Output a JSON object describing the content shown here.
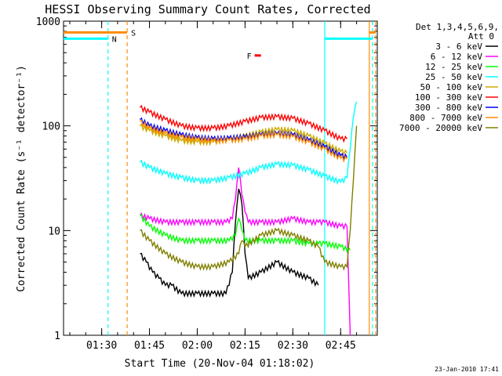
{
  "chart_data": {
    "type": "line",
    "title": "HESSI Observing Summary Count Rates, Corrected",
    "xlabel": "Start Time (20-Nov-04 01:18:02)",
    "ylabel": "Corrected Count Rate (s⁻¹ detector⁻¹)",
    "y_scale": "log",
    "ylim": [
      1,
      1000
    ],
    "xlim": [
      "01:18:02",
      "02:56:30"
    ],
    "y_ticks": [
      "1",
      "10",
      "100",
      "1000"
    ],
    "x_ticks": [
      "01:30",
      "01:45",
      "02:00",
      "02:15",
      "02:30",
      "02:45"
    ],
    "legend_header": "Det 1,3,4,5,6,9,",
    "legend_subheader": "Att 0",
    "legend_position": "right",
    "series": [
      {
        "name": "3 - 6 keV",
        "color": "#000000",
        "x": [
          "01:42",
          "01:44",
          "01:46",
          "01:48",
          "01:50",
          "01:52",
          "01:55",
          "02:00",
          "02:05",
          "02:09",
          "02:11",
          "02:12",
          "02:13",
          "02:14",
          "02:15",
          "02:16",
          "02:20",
          "02:25",
          "02:30",
          "02:35",
          "02:38"
        ],
        "y": [
          6,
          5,
          4,
          3.5,
          3,
          3,
          2.5,
          2.5,
          2.5,
          2.5,
          4,
          12,
          25,
          18,
          6,
          3.5,
          4,
          5,
          4,
          3.5,
          3
        ]
      },
      {
        "name": "6 - 12 keV",
        "color": "#ff00ff",
        "x": [
          "01:42",
          "01:45",
          "01:50",
          "01:55",
          "02:00",
          "02:05",
          "02:09",
          "02:11",
          "02:12",
          "02:13",
          "02:14",
          "02:15",
          "02:16",
          "02:20",
          "02:25",
          "02:30",
          "02:35",
          "02:38",
          "02:40",
          "02:45",
          "02:47",
          "02:48"
        ],
        "y": [
          14,
          13,
          12,
          12,
          12,
          12,
          12,
          13,
          20,
          40,
          22,
          15,
          12,
          12,
          12,
          13,
          12,
          12,
          12,
          11,
          11,
          1
        ]
      },
      {
        "name": "12 - 25 keV",
        "color": "#00ff00",
        "x": [
          "01:42",
          "01:45",
          "01:50",
          "01:55",
          "02:00",
          "02:05",
          "02:10",
          "02:12",
          "02:13",
          "02:14",
          "02:15",
          "02:20",
          "02:25",
          "02:30",
          "02:35",
          "02:38",
          "02:40",
          "02:45",
          "02:48"
        ],
        "y": [
          14,
          11,
          9,
          8,
          8,
          8,
          8,
          9,
          13,
          10,
          8,
          8,
          8,
          8,
          7.5,
          7.5,
          7.5,
          7,
          6.5
        ]
      },
      {
        "name": "25 - 50 keV",
        "color": "#00ffff",
        "x": [
          "01:42",
          "01:45",
          "01:50",
          "01:55",
          "02:00",
          "02:05",
          "02:10",
          "02:15",
          "02:20",
          "02:25",
          "02:30",
          "02:35",
          "02:40",
          "02:45",
          "02:47",
          "02:48",
          "02:49",
          "02:50"
        ],
        "y": [
          45,
          40,
          35,
          32,
          30,
          30,
          32,
          35,
          40,
          43,
          42,
          38,
          33,
          29,
          32,
          60,
          120,
          170
        ]
      },
      {
        "name": "50 - 100 keV",
        "color": "#ccaa00",
        "x": [
          "01:42",
          "01:45",
          "01:50",
          "01:55",
          "02:00",
          "02:05",
          "02:10",
          "02:15",
          "02:20",
          "02:25",
          "02:30",
          "02:35",
          "02:40",
          "02:45",
          "02:47"
        ],
        "y": [
          100,
          90,
          80,
          72,
          70,
          70,
          75,
          80,
          87,
          92,
          90,
          80,
          68,
          57,
          55
        ]
      },
      {
        "name": "100 - 300 keV",
        "color": "#ff0000",
        "x": [
          "01:42",
          "01:45",
          "01:50",
          "01:55",
          "02:00",
          "02:05",
          "02:10",
          "02:15",
          "02:20",
          "02:25",
          "02:30",
          "02:35",
          "02:40",
          "02:45",
          "02:47"
        ],
        "y": [
          150,
          135,
          115,
          100,
          95,
          95,
          100,
          110,
          120,
          122,
          118,
          105,
          90,
          75,
          75
        ]
      },
      {
        "name": "300 - 800 keV",
        "color": "#0000ff",
        "x": [
          "01:42",
          "01:45",
          "01:50",
          "01:55",
          "02:00",
          "02:05",
          "02:10",
          "02:15",
          "02:20",
          "02:25",
          "02:30",
          "02:35",
          "02:40",
          "02:45",
          "02:47"
        ],
        "y": [
          115,
          100,
          90,
          82,
          77,
          75,
          76,
          78,
          82,
          84,
          82,
          73,
          63,
          52,
          50
        ]
      },
      {
        "name": "800 - 7000 keV",
        "color": "#ff8c00",
        "x": [
          "01:42",
          "01:45",
          "01:50",
          "01:55",
          "02:00",
          "02:05",
          "02:10",
          "02:15",
          "02:20",
          "02:25",
          "02:30",
          "02:35",
          "02:40",
          "02:45",
          "02:47"
        ],
        "y": [
          110,
          95,
          85,
          78,
          74,
          72,
          73,
          75,
          80,
          82,
          79,
          70,
          60,
          49,
          48
        ]
      },
      {
        "name": "7000 - 20000 keV",
        "color": "#808000",
        "x": [
          "01:42",
          "01:45",
          "01:50",
          "01:55",
          "02:00",
          "02:05",
          "02:10",
          "02:13",
          "02:14",
          "02:15",
          "02:20",
          "02:25",
          "02:30",
          "02:35",
          "02:38",
          "02:40",
          "02:45",
          "02:47",
          "02:48",
          "02:49",
          "02:50"
        ],
        "y": [
          10,
          8,
          6,
          5,
          4.5,
          4.5,
          5,
          6,
          8,
          7,
          9,
          10,
          9,
          8,
          7,
          5,
          4.5,
          4.5,
          10,
          30,
          100
        ]
      }
    ],
    "attenuator_state": [
      {
        "label": "N",
        "color": "#00ffff",
        "start": "01:18:02",
        "end": "01:32",
        "level": 680
      },
      {
        "label": "S",
        "color": "#ff8c00",
        "start": "01:18:02",
        "end": "01:38",
        "level": 780
      },
      {
        "label": "F",
        "color": "#ff0000",
        "start": "02:18",
        "end": "02:20",
        "level": 470
      },
      {
        "label": "",
        "color": "#00ffff",
        "start": "02:40",
        "end": "02:55",
        "level": 680
      },
      {
        "label": "",
        "color": "#ff8c00",
        "start": "02:54",
        "end": "02:56",
        "level": 780
      }
    ],
    "markers": [
      {
        "time": "01:32",
        "color": "#00ffff",
        "style": "dashed"
      },
      {
        "time": "01:38",
        "color": "#ff8c00",
        "style": "dashed"
      },
      {
        "time": "02:40",
        "color": "#00ffff",
        "style": "solid"
      },
      {
        "time": "02:54",
        "color": "#ff8c00",
        "style": "solid"
      },
      {
        "time": "02:55",
        "color": "#00ffff",
        "style": "dashed"
      },
      {
        "time": "02:56",
        "color": "#ff8c00",
        "style": "dashed"
      }
    ],
    "footer_date": "23-Jan-2010 17:41"
  }
}
